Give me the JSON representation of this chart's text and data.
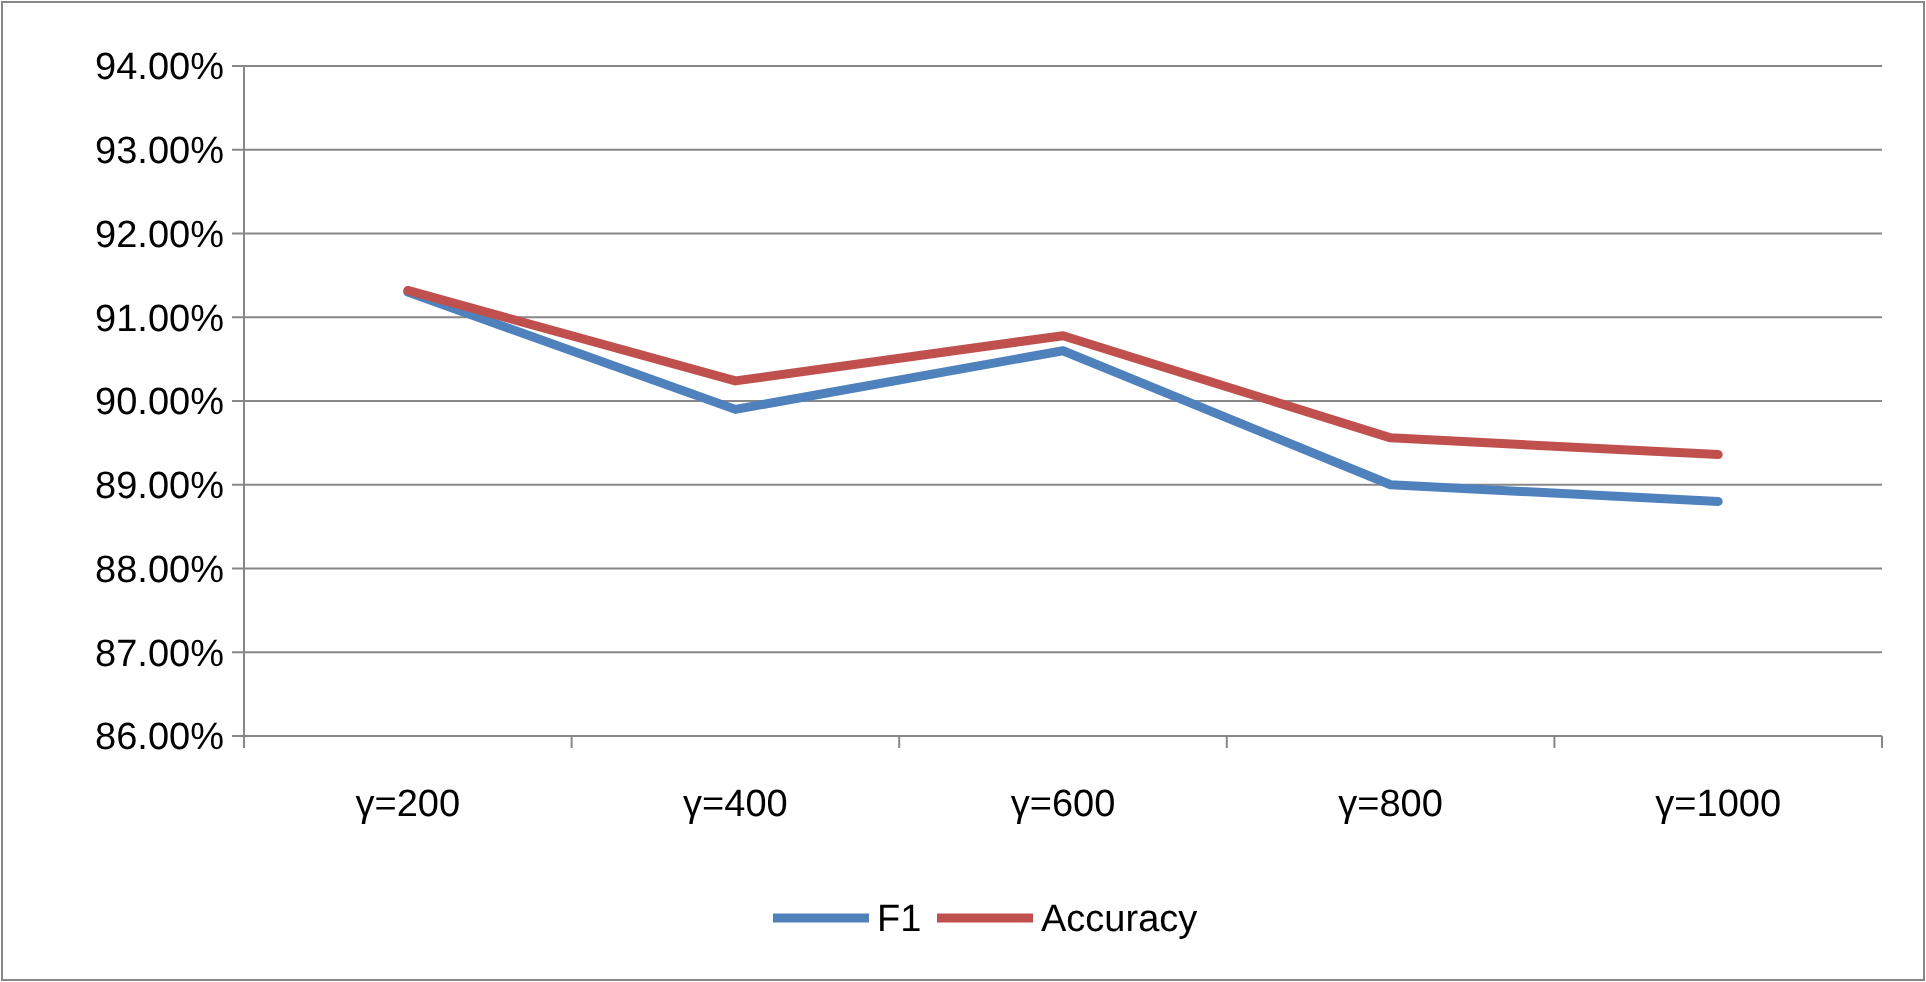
{
  "chart_data": {
    "type": "line",
    "categories": [
      "γ=200",
      "γ=400",
      "γ=600",
      "γ=800",
      "γ=1000"
    ],
    "series": [
      {
        "name": "F1",
        "color": "#4f81bd",
        "values": [
          91.3,
          89.9,
          90.6,
          89.0,
          88.8
        ]
      },
      {
        "name": "Accuracy",
        "color": "#c0504d",
        "values": [
          91.32,
          90.24,
          90.78,
          89.56,
          89.36
        ]
      }
    ],
    "ylim": [
      86,
      94
    ],
    "yticks": [
      {
        "value": 86,
        "label": "86.00%"
      },
      {
        "value": 87,
        "label": "87.00%"
      },
      {
        "value": 88,
        "label": "88.00%"
      },
      {
        "value": 89,
        "label": "89.00%"
      },
      {
        "value": 90,
        "label": "90.00%"
      },
      {
        "value": 91,
        "label": "91.00%"
      },
      {
        "value": 92,
        "label": "92.00%"
      },
      {
        "value": 93,
        "label": "93.00%"
      },
      {
        "value": 94,
        "label": "94.00%"
      }
    ],
    "grid": "y",
    "legend": "bottom",
    "marker": "none",
    "line_style": "solid"
  }
}
